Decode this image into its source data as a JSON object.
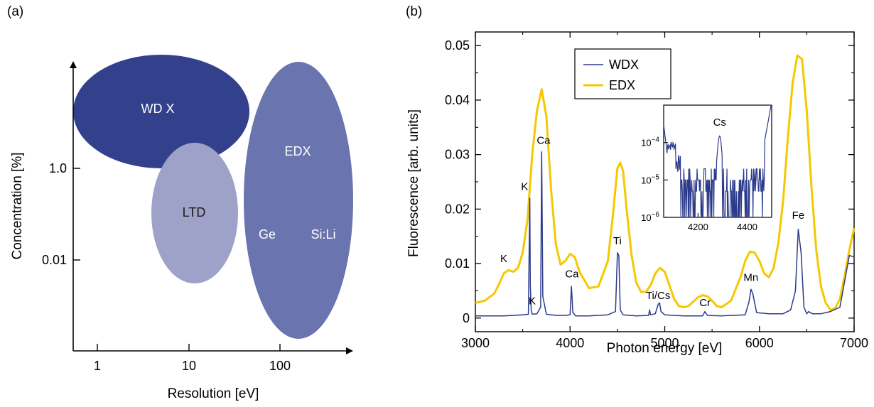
{
  "colors": {
    "wdx_region": "#33418c",
    "edx_region": "#6a74ae",
    "ltd_region": "#9ea2c9",
    "wdx_line": "#2b3a8a",
    "edx_line": "#f5c800"
  },
  "panel_a": {
    "label": "(a)",
    "xlabel": "Resolution [eV]",
    "ylabel": "Concentration [%]",
    "x_ticks": [
      "1",
      "10",
      "100"
    ],
    "y_ticks": [
      "1.0",
      "0.01"
    ],
    "regions": [
      {
        "name": "WDX",
        "label": "WD X"
      },
      {
        "name": "LTD",
        "label": "LTD"
      },
      {
        "name": "EDX",
        "label": "EDX"
      }
    ],
    "edx_sublabels": [
      "Ge",
      "Si:Li"
    ]
  },
  "chart_data": [
    {
      "type": "line",
      "panel": "(b)",
      "xlabel": "Photon energy [eV]",
      "ylabel": "Fluorescence [arb. units]",
      "xlim": [
        3000,
        7000
      ],
      "ylim": [
        -0.0025,
        0.0525
      ],
      "x_ticks": [
        3000,
        4000,
        5000,
        6000,
        7000
      ],
      "y_ticks": [
        0,
        0.01,
        0.02,
        0.03,
        0.04,
        0.05
      ],
      "y_tick_labels": [
        "0",
        "0.01",
        "0.02",
        "0.03",
        "0.04",
        "0.05"
      ],
      "legend": {
        "position": "top-left",
        "entries": [
          "WDX",
          "EDX"
        ]
      },
      "series": [
        {
          "name": "WDX",
          "x": [
            3000,
            3100,
            3200,
            3300,
            3400,
            3500,
            3560,
            3575,
            3580,
            3590,
            3600,
            3650,
            3690,
            3700,
            3712,
            3750,
            3850,
            3950,
            4000,
            4015,
            4030,
            4060,
            4200,
            4400,
            4480,
            4500,
            4515,
            4530,
            4560,
            4700,
            4830,
            4840,
            4850,
            4900,
            4930,
            4945,
            4960,
            5000,
            5200,
            5400,
            5425,
            5450,
            5600,
            5850,
            5890,
            5910,
            5930,
            5970,
            6100,
            6250,
            6330,
            6380,
            6410,
            6440,
            6470,
            6500,
            6520,
            6560,
            6650,
            6750,
            6850,
            6950,
            7000
          ],
          "values": [
            0.0004,
            0.0004,
            0.0004,
            0.0004,
            0.0005,
            0.0006,
            0.0007,
            0.022,
            0.006,
            0.0015,
            0.0007,
            0.0008,
            0.002,
            0.0305,
            0.004,
            0.0007,
            0.0005,
            0.0005,
            0.0006,
            0.0058,
            0.001,
            0.0004,
            0.0004,
            0.0006,
            0.0012,
            0.012,
            0.0115,
            0.0015,
            0.0006,
            0.0004,
            0.0005,
            0.0015,
            0.0006,
            0.0008,
            0.0025,
            0.0028,
            0.0012,
            0.0006,
            0.0004,
            0.0004,
            0.0012,
            0.0005,
            0.0004,
            0.0006,
            0.003,
            0.0053,
            0.0045,
            0.001,
            0.0008,
            0.0008,
            0.0015,
            0.005,
            0.0163,
            0.012,
            0.002,
            0.0008,
            0.0012,
            0.0008,
            0.0008,
            0.0012,
            0.002,
            0.0115,
            0.0112
          ]
        },
        {
          "name": "EDX",
          "x": [
            3000,
            3100,
            3200,
            3250,
            3300,
            3350,
            3400,
            3450,
            3500,
            3550,
            3600,
            3650,
            3700,
            3750,
            3800,
            3850,
            3900,
            3950,
            4000,
            4050,
            4100,
            4200,
            4300,
            4400,
            4450,
            4500,
            4530,
            4560,
            4600,
            4650,
            4700,
            4750,
            4800,
            4850,
            4900,
            4950,
            5000,
            5050,
            5100,
            5150,
            5200,
            5250,
            5300,
            5350,
            5400,
            5450,
            5500,
            5550,
            5600,
            5700,
            5800,
            5850,
            5900,
            5950,
            6000,
            6050,
            6100,
            6150,
            6200,
            6250,
            6300,
            6350,
            6400,
            6450,
            6500,
            6550,
            6600,
            6650,
            6700,
            6750,
            6800,
            6850,
            6900,
            6950,
            7000
          ],
          "values": [
            0.0028,
            0.0032,
            0.0045,
            0.0062,
            0.0082,
            0.0088,
            0.0085,
            0.0092,
            0.012,
            0.018,
            0.03,
            0.038,
            0.042,
            0.037,
            0.0235,
            0.0135,
            0.0098,
            0.0105,
            0.0118,
            0.0112,
            0.0085,
            0.0055,
            0.0058,
            0.0105,
            0.0185,
            0.0275,
            0.0285,
            0.027,
            0.0195,
            0.0115,
            0.0065,
            0.0048,
            0.0048,
            0.006,
            0.0082,
            0.0092,
            0.0085,
            0.006,
            0.0035,
            0.0022,
            0.002,
            0.0022,
            0.003,
            0.0038,
            0.0042,
            0.004,
            0.0032,
            0.0022,
            0.002,
            0.0032,
            0.0075,
            0.0105,
            0.0122,
            0.012,
            0.0105,
            0.0082,
            0.0075,
            0.0092,
            0.0138,
            0.0215,
            0.033,
            0.043,
            0.0482,
            0.0475,
            0.038,
            0.024,
            0.0125,
            0.0058,
            0.0028,
            0.0015,
            0.0018,
            0.0035,
            0.0078,
            0.0125,
            0.0165
          ]
        }
      ],
      "annotations": [
        {
          "text": "K",
          "x": 3300,
          "y": 0.0103
        },
        {
          "text": "K",
          "x": 3520,
          "y": 0.0235
        },
        {
          "text": "K",
          "x": 3600,
          "y": 0.0025
        },
        {
          "text": "Ca",
          "x": 3720,
          "y": 0.032
        },
        {
          "text": "Ca",
          "x": 4020,
          "y": 0.0075
        },
        {
          "text": "Ti",
          "x": 4500,
          "y": 0.0135
        },
        {
          "text": "Ti/Cs",
          "x": 4930,
          "y": 0.0035
        },
        {
          "text": "Cr",
          "x": 5425,
          "y": 0.0022
        },
        {
          "text": "Mn",
          "x": 5910,
          "y": 0.0068
        },
        {
          "text": "Fe",
          "x": 6410,
          "y": 0.0182
        }
      ]
    },
    {
      "type": "line",
      "panel": "inset",
      "series_name": "WDX",
      "xlim": [
        4060,
        4500
      ],
      "ylim": [
        1e-06,
        0.001
      ],
      "y_scale": "log",
      "x_ticks": [
        4200,
        4400
      ],
      "y_ticks": [
        1e-06,
        1e-05,
        0.0001
      ],
      "y_tick_bases": [
        "10",
        "10",
        "10"
      ],
      "y_tick_exponents": [
        "−6",
        "−5",
        "−4"
      ],
      "annotation": {
        "text": "Cs",
        "x": 4288,
        "y": 0.0002
      }
    }
  ]
}
